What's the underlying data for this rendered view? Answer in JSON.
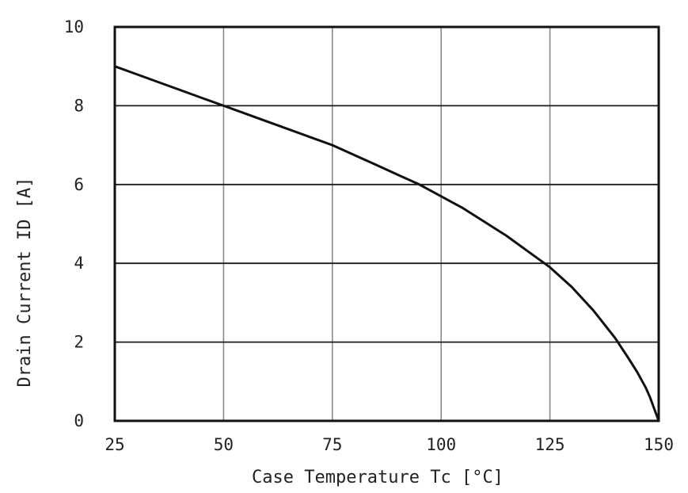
{
  "chart_data": {
    "type": "line",
    "title": "",
    "xlabel": "Case Temperature  Tc [°C]",
    "ylabel": "Drain Current  ID [A]",
    "xlim": [
      25,
      150
    ],
    "ylim": [
      0,
      10
    ],
    "xticks": [
      25,
      50,
      75,
      100,
      125,
      150
    ],
    "yticks": [
      0,
      2,
      4,
      6,
      8,
      10
    ],
    "grid": true,
    "legend": "none",
    "series": [
      {
        "color": "#111111",
        "x": [
          25,
          30,
          35,
          40,
          45,
          50,
          55,
          60,
          65,
          70,
          75,
          80,
          85,
          90,
          95,
          100,
          105,
          110,
          115,
          120,
          125,
          130,
          135,
          140,
          143,
          145,
          147,
          148,
          149,
          150
        ],
        "y": [
          9.0,
          8.8,
          8.6,
          8.4,
          8.2,
          8.0,
          7.8,
          7.6,
          7.4,
          7.2,
          7.0,
          6.75,
          6.5,
          6.25,
          6.0,
          5.7,
          5.4,
          5.05,
          4.7,
          4.3,
          3.9,
          3.4,
          2.8,
          2.1,
          1.6,
          1.25,
          0.85,
          0.6,
          0.3,
          0.0
        ]
      }
    ]
  }
}
